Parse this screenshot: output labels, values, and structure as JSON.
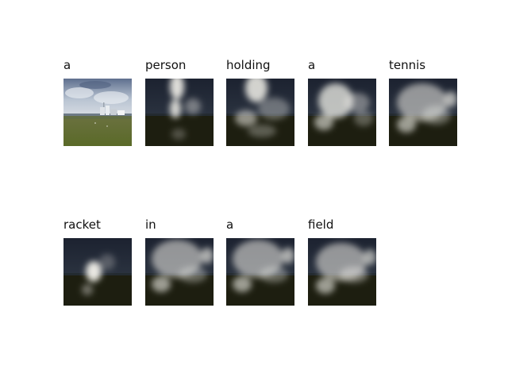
{
  "words": [
    "a",
    "person",
    "holding",
    "a",
    "tennis",
    "racket",
    "in",
    "a",
    "field"
  ]
}
